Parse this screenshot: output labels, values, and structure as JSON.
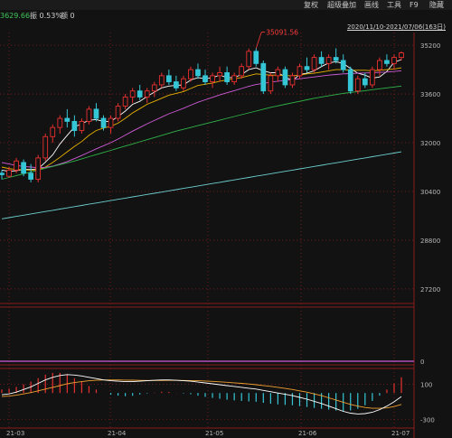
{
  "toolbar": {
    "items": [
      "复权",
      "超级叠加",
      "画线",
      "工具",
      "F9",
      "隐藏"
    ]
  },
  "info": {
    "price_value": "3629.66",
    "amplitude": "振 0.53%",
    "volume": "额 0"
  },
  "range_label": "2020/11/10-2021/07/06(163日)",
  "colors": {
    "up": "#e8302f",
    "down": "#35c6d6",
    "ma5": "#ffffff",
    "ma10": "#e8b100",
    "ma20": "#d05bd8",
    "ma60": "#2fb34a",
    "ma120": "#6ccfcf",
    "macd_dif": "#ffffff",
    "macd_dea": "#f0a030",
    "grid": "#8a1c1c",
    "axis_text": "#b8b8b8",
    "price_green": "#3ec75a",
    "max_label": "#ff3b3b"
  },
  "chart_data": [
    {
      "type": "candlestick",
      "x_ticks": [
        "21-03",
        "21-04",
        "21-05",
        "21-06",
        "21-07"
      ],
      "y_ticks": [
        "35200",
        "33600",
        "32000",
        "30400",
        "28800",
        "27200"
      ],
      "ylim": [
        26900,
        35500
      ],
      "max_annotation": "35091.56",
      "candles": [
        [
          31000,
          31100,
          30800,
          30950
        ],
        [
          30900,
          31200,
          30850,
          31100
        ],
        [
          31100,
          31500,
          31000,
          31400
        ],
        [
          31350,
          31450,
          30900,
          31000
        ],
        [
          31000,
          31300,
          30700,
          30800
        ],
        [
          30800,
          31600,
          30700,
          31500
        ],
        [
          31500,
          32300,
          31400,
          32200
        ],
        [
          32200,
          32600,
          32000,
          32500
        ],
        [
          32500,
          32900,
          32300,
          32800
        ],
        [
          32800,
          33100,
          32500,
          32700
        ],
        [
          32700,
          32900,
          32200,
          32400
        ],
        [
          32400,
          32800,
          32300,
          32700
        ],
        [
          32700,
          33200,
          32600,
          33100
        ],
        [
          33100,
          33300,
          32700,
          32800
        ],
        [
          32800,
          32900,
          32400,
          32500
        ],
        [
          32500,
          32900,
          32300,
          32800
        ],
        [
          32800,
          33300,
          32700,
          33200
        ],
        [
          33200,
          33600,
          33100,
          33500
        ],
        [
          33500,
          33800,
          33300,
          33700
        ],
        [
          33700,
          33900,
          33400,
          33500
        ],
        [
          33500,
          33800,
          33300,
          33700
        ],
        [
          33700,
          34000,
          33500,
          33900
        ],
        [
          33900,
          34300,
          33800,
          34200
        ],
        [
          34200,
          34400,
          33900,
          34000
        ],
        [
          34000,
          34200,
          33700,
          33800
        ],
        [
          33800,
          34200,
          33700,
          34100
        ],
        [
          34100,
          34500,
          34000,
          34400
        ],
        [
          34400,
          34600,
          34100,
          34200
        ],
        [
          34200,
          34400,
          33900,
          34000
        ],
        [
          34000,
          34300,
          33800,
          34200
        ],
        [
          34200,
          34500,
          34000,
          34300
        ],
        [
          34300,
          34500,
          33900,
          34000
        ],
        [
          34000,
          34300,
          33900,
          34200
        ],
        [
          34200,
          34600,
          34100,
          34500
        ],
        [
          34500,
          35092,
          34400,
          35000
        ],
        [
          35000,
          35100,
          34500,
          34600
        ],
        [
          34600,
          34700,
          33600,
          33700
        ],
        [
          33700,
          34300,
          33600,
          34200
        ],
        [
          34200,
          34500,
          34000,
          34400
        ],
        [
          34400,
          34500,
          33800,
          33900
        ],
        [
          33900,
          34300,
          33800,
          34200
        ],
        [
          34200,
          34600,
          34100,
          34500
        ],
        [
          34500,
          34800,
          34300,
          34400
        ],
        [
          34400,
          34900,
          34300,
          34800
        ],
        [
          34800,
          35000,
          34500,
          34600
        ],
        [
          34600,
          34900,
          34400,
          34800
        ],
        [
          34800,
          35100,
          34600,
          34700
        ],
        [
          34700,
          34900,
          34300,
          34400
        ],
        [
          34400,
          34500,
          33600,
          33700
        ],
        [
          33700,
          34200,
          33600,
          34100
        ],
        [
          34100,
          34300,
          33800,
          33900
        ],
        [
          33900,
          34500,
          33800,
          34400
        ],
        [
          34400,
          34800,
          34200,
          34700
        ],
        [
          34700,
          34900,
          34500,
          34600
        ],
        [
          34600,
          34900,
          34400,
          34800
        ],
        [
          34800,
          35000,
          34700,
          34950
        ]
      ],
      "ma_series": [
        {
          "values": [
            31100,
            31060,
            31080,
            31130,
            31120,
            31140,
            31360,
            31600,
            31960,
            32240,
            32520,
            32620,
            32740,
            32760,
            32700,
            32700,
            32860,
            33040,
            33260,
            33360,
            33520,
            33660,
            33800,
            33860,
            33880,
            33900,
            34060,
            34140,
            34100,
            34140,
            34220,
            34140,
            34140,
            34240,
            34400,
            34460,
            34360,
            34300,
            34300,
            34160,
            34040,
            34240,
            34280,
            34360,
            34500,
            34620,
            34660,
            34600,
            34440,
            34280,
            34220,
            34120,
            34160,
            34340,
            34640,
            34730
          ]
        },
        {
          "values": [
            31200,
            31150,
            31120,
            31110,
            31100,
            31110,
            31200,
            31350,
            31520,
            31700,
            31880,
            32040,
            32240,
            32400,
            32480,
            32540,
            32640,
            32800,
            32980,
            33120,
            33260,
            33360,
            33460,
            33560,
            33620,
            33680,
            33780,
            33880,
            33920,
            33960,
            34020,
            34060,
            34100,
            34140,
            34200,
            34260,
            34240,
            34220,
            34220,
            34200,
            34200,
            34220,
            34260,
            34280,
            34320,
            34360,
            34400,
            34400,
            34380,
            34380,
            34380,
            34360,
            34380,
            34400,
            34420,
            34460
          ]
        },
        {
          "values": [
            31350,
            31300,
            31250,
            31220,
            31200,
            31180,
            31190,
            31230,
            31300,
            31380,
            31480,
            31580,
            31690,
            31800,
            31900,
            32000,
            32120,
            32250,
            32380,
            32500,
            32620,
            32730,
            32840,
            32950,
            33040,
            33130,
            33230,
            33330,
            33410,
            33490,
            33570,
            33640,
            33710,
            33780,
            33850,
            33910,
            33950,
            33990,
            34020,
            34050,
            34070,
            34100,
            34130,
            34160,
            34190,
            34220,
            34240,
            34260,
            34270,
            34280,
            34290,
            34300,
            34310,
            34320,
            34340,
            34360
          ]
        },
        {
          "values": [
            30800,
            30860,
            30920,
            30980,
            31040,
            31100,
            31160,
            31220,
            31280,
            31340,
            31400,
            31470,
            31540,
            31610,
            31680,
            31750,
            31820,
            31890,
            31960,
            32030,
            32100,
            32170,
            32240,
            32310,
            32380,
            32440,
            32500,
            32560,
            32620,
            32680,
            32740,
            32800,
            32860,
            32920,
            32980,
            33040,
            33100,
            33160,
            33210,
            33260,
            33310,
            33360,
            33410,
            33460,
            33500,
            33540,
            33580,
            33620,
            33650,
            33680,
            33710,
            33740,
            33770,
            33800,
            33830,
            33860
          ]
        },
        {
          "values": [
            29500,
            29540,
            29580,
            29620,
            29660,
            29700,
            29740,
            29780,
            29820,
            29860,
            29900,
            29940,
            29980,
            30020,
            30060,
            30100,
            30140,
            30180,
            30220,
            30260,
            30300,
            30340,
            30380,
            30420,
            30460,
            30500,
            30540,
            30580,
            30620,
            30660,
            30700,
            30740,
            30780,
            30820,
            30860,
            30900,
            30940,
            30980,
            31020,
            31060,
            31100,
            31140,
            31180,
            31220,
            31260,
            31300,
            31340,
            31380,
            31420,
            31460,
            31500,
            31540,
            31580,
            31620,
            31660,
            31700
          ]
        }
      ]
    },
    {
      "type": "bar",
      "y_ticks": [
        "0"
      ],
      "values": [
        0
      ]
    },
    {
      "type": "macd",
      "y_ticks": [
        "100",
        "-300"
      ],
      "ylim": [
        -380,
        260
      ],
      "dif": [
        -20,
        -10,
        10,
        40,
        70,
        110,
        150,
        180,
        200,
        210,
        205,
        195,
        180,
        165,
        150,
        140,
        135,
        130,
        130,
        135,
        140,
        145,
        150,
        150,
        145,
        140,
        135,
        125,
        115,
        105,
        95,
        85,
        75,
        65,
        55,
        45,
        30,
        15,
        0,
        -15,
        -30,
        -50,
        -70,
        -95,
        -120,
        -150,
        -180,
        -210,
        -230,
        -240,
        -235,
        -220,
        -190,
        -150,
        -100,
        -40
      ],
      "dea": [
        -40,
        -35,
        -25,
        -10,
        5,
        25,
        45,
        65,
        85,
        105,
        120,
        130,
        140,
        145,
        150,
        150,
        150,
        148,
        146,
        144,
        143,
        143,
        143,
        144,
        144,
        143,
        142,
        140,
        137,
        133,
        128,
        123,
        117,
        110,
        103,
        95,
        86,
        76,
        65,
        53,
        40,
        25,
        10,
        -10,
        -30,
        -55,
        -80,
        -105,
        -130,
        -150,
        -165,
        -175,
        -175,
        -170,
        -155,
        -130
      ]
    }
  ]
}
